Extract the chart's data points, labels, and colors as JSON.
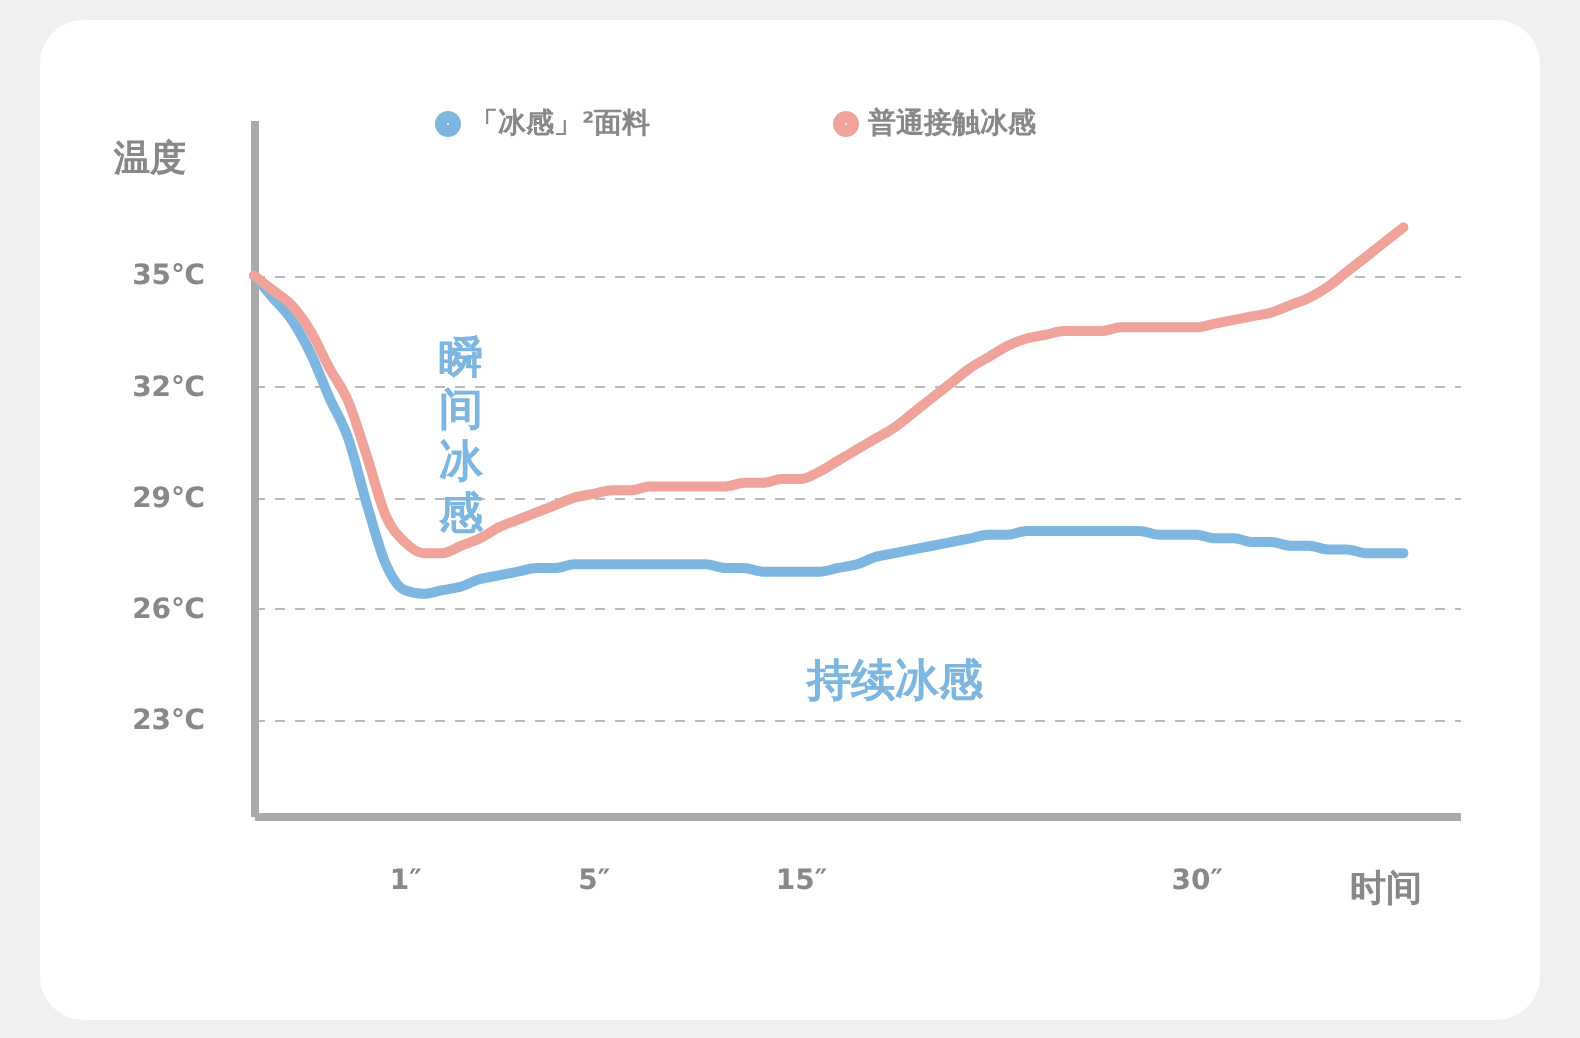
{
  "chart_data": {
    "type": "line",
    "xlabel": "时间",
    "ylabel": "温度",
    "categories": [
      null,
      null,
      null,
      null,
      null,
      null,
      null,
      null,
      "1″",
      null,
      null,
      null,
      null,
      null,
      null,
      null,
      null,
      null,
      "5″",
      null,
      null,
      null,
      null,
      null,
      null,
      null,
      null,
      null,
      null,
      "15″",
      null,
      null,
      null,
      null,
      null,
      null,
      null,
      null,
      null,
      null,
      null,
      null,
      null,
      null,
      null,
      null,
      null,
      null,
      null,
      null,
      "30″",
      null,
      null,
      null,
      null,
      null,
      null,
      null,
      null,
      null,
      null,
      null,
      null,
      null,
      null
    ],
    "ylim": [
      20.4,
      39.2
    ],
    "yticks": [
      {
        "value": 23,
        "label": "23℃"
      },
      {
        "value": 26,
        "label": "26℃"
      },
      {
        "value": 29,
        "label": "29℃"
      },
      {
        "value": 32,
        "label": "32℃"
      },
      {
        "value": 35,
        "label": "35℃"
      }
    ],
    "grid": "y",
    "legend": "top",
    "line_style": "solid",
    "marker": "none",
    "annotations": [
      "瞬间冰感",
      "持续冰感"
    ],
    "series": [
      {
        "name": "「冰感」²面料",
        "color": "#7db6e0",
        "values": [
          35,
          34.4,
          33.8,
          32.9,
          31.7,
          30.6,
          28.8,
          27.2,
          26.5,
          26.4,
          26.5,
          26.6,
          26.8,
          26.9,
          27.0,
          27.1,
          27.1,
          27.2,
          27.2,
          27.2,
          27.2,
          27.2,
          27.2,
          27.2,
          27.2,
          27.1,
          27.1,
          27.0,
          27.0,
          27.0,
          27.0,
          27.1,
          27.2,
          27.4,
          27.5,
          27.6,
          27.7,
          27.8,
          27.9,
          28.0,
          28.0,
          28.1,
          28.1,
          28.1,
          28.1,
          28.1,
          28.1,
          28.1,
          28.0,
          28.0,
          28.0,
          27.9,
          27.9,
          27.8,
          27.8,
          27.7,
          27.7,
          27.6,
          27.6,
          27.5,
          27.5,
          27.5,
          null,
          null,
          null
        ]
      },
      {
        "name": "普通接触冰感",
        "color": "#f0a39a",
        "values": [
          35,
          34.6,
          34.2,
          33.5,
          32.5,
          31.6,
          30.1,
          28.5,
          27.8,
          27.5,
          27.5,
          27.7,
          27.9,
          28.2,
          28.4,
          28.6,
          28.8,
          29.0,
          29.1,
          29.2,
          29.2,
          29.3,
          29.3,
          29.3,
          29.3,
          29.3,
          29.4,
          29.4,
          29.5,
          29.5,
          29.7,
          30.0,
          30.3,
          30.6,
          30.9,
          31.3,
          31.7,
          32.1,
          32.5,
          32.8,
          33.1,
          33.3,
          33.4,
          33.5,
          33.5,
          33.5,
          33.6,
          33.6,
          33.6,
          33.6,
          33.6,
          33.7,
          33.8,
          33.9,
          34.0,
          34.2,
          34.4,
          34.7,
          35.1,
          35.5,
          35.9,
          36.3,
          null,
          null,
          null
        ]
      }
    ]
  }
}
